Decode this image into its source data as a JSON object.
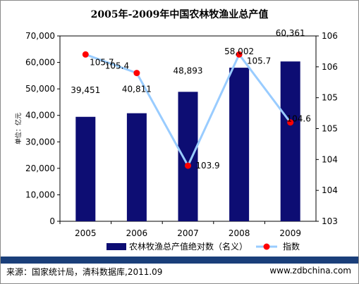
{
  "chart_data": {
    "type": "bar",
    "title": "2005年-2009年中国农林牧渔业总产值",
    "categories": [
      "2005",
      "2006",
      "2007",
      "2008",
      "2009"
    ],
    "series": [
      {
        "name": "农林牧渔总产值绝对数（名义）",
        "type": "bar",
        "axis": "left",
        "color": "#0d0d73",
        "values": [
          39451,
          40811,
          48893,
          58002,
          60361
        ],
        "labels": [
          "39,451",
          "40,811",
          "48,893",
          "58,002",
          "60,361"
        ]
      },
      {
        "name": "指数",
        "type": "line",
        "axis": "right",
        "line_color": "#99ccff",
        "marker_color": "#ff0000",
        "values": [
          105.7,
          105.4,
          103.9,
          105.7,
          104.6
        ],
        "labels": [
          "105.7",
          "105.4",
          "103.9",
          "105.7",
          "104.6"
        ]
      }
    ],
    "ylabel": "单位：亿元",
    "ylim": [
      0,
      70000
    ],
    "yticks": [
      "0",
      "10,000",
      "20,000",
      "30,000",
      "40,000",
      "50,000",
      "60,000",
      "70,000"
    ],
    "y2lim": [
      103,
      106
    ],
    "y2ticks": [
      "103",
      "104",
      "104",
      "105",
      "105",
      "106",
      "106"
    ],
    "legend_position": "bottom"
  },
  "footer": {
    "source": "来源：国家统计局，清科数据库,2011.09",
    "site": "www.zdbchina.com"
  }
}
